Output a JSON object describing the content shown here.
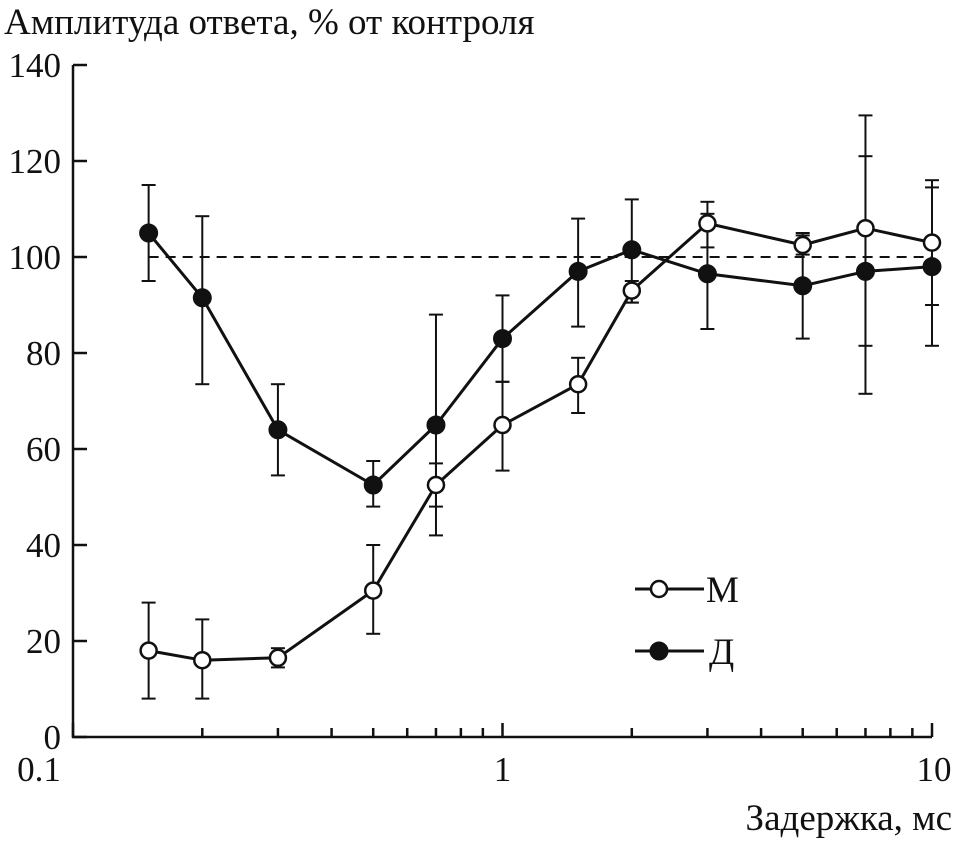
{
  "chart_data": {
    "type": "line",
    "title": "",
    "ylabel": "Амплитуда ответа, % от контроля",
    "xlabel": "Задержка, мс",
    "xscale": "log",
    "xlim": [
      0.1,
      10
    ],
    "ylim": [
      0,
      140
    ],
    "xticks": [
      {
        "value": 0.1,
        "label": "0.1"
      },
      {
        "value": 1,
        "label": "1"
      },
      {
        "value": 10,
        "label": "10"
      }
    ],
    "yticks": [
      {
        "value": 0,
        "label": "0"
      },
      {
        "value": 20,
        "label": "20"
      },
      {
        "value": 40,
        "label": "40"
      },
      {
        "value": 60,
        "label": "60"
      },
      {
        "value": 80,
        "label": "80"
      },
      {
        "value": 100,
        "label": "100"
      },
      {
        "value": 120,
        "label": "120"
      },
      {
        "value": 140,
        "label": "140"
      }
    ],
    "reference_line": {
      "y": 100,
      "style": "dashed"
    },
    "grid": false,
    "legend_position": "bottom-right",
    "series": [
      {
        "name": "М",
        "marker": "open-circle",
        "x": [
          0.15,
          0.2,
          0.3,
          0.5,
          0.7,
          1,
          1.5,
          2,
          3,
          5,
          7,
          10
        ],
        "y": [
          18,
          16,
          16.5,
          30.5,
          52.5,
          65,
          73.5,
          93,
          107,
          102.5,
          106,
          103
        ],
        "err_low": [
          8,
          8,
          14.5,
          21.5,
          42,
          55.5,
          67.5,
          90.5,
          102,
          100.5,
          81.5,
          90
        ],
        "err_high": [
          28,
          24.5,
          18.5,
          40,
          57,
          74,
          79,
          95,
          111.5,
          104.5,
          129.5,
          116
        ]
      },
      {
        "name": "Д",
        "marker": "filled-circle",
        "x": [
          0.15,
          0.2,
          0.3,
          0.5,
          0.7,
          1,
          1.5,
          2,
          3,
          5,
          7,
          10
        ],
        "y": [
          105,
          91.5,
          64,
          52.5,
          65,
          83,
          97,
          101.5,
          96.5,
          94,
          97,
          98
        ],
        "err_low": [
          95,
          73.5,
          54.5,
          48,
          48,
          74,
          85.5,
          90.5,
          85,
          83,
          71.5,
          81.5
        ],
        "err_high": [
          115,
          108.5,
          73.5,
          57.5,
          88,
          92,
          108,
          112,
          109,
          105,
          121,
          114.5
        ]
      }
    ]
  }
}
